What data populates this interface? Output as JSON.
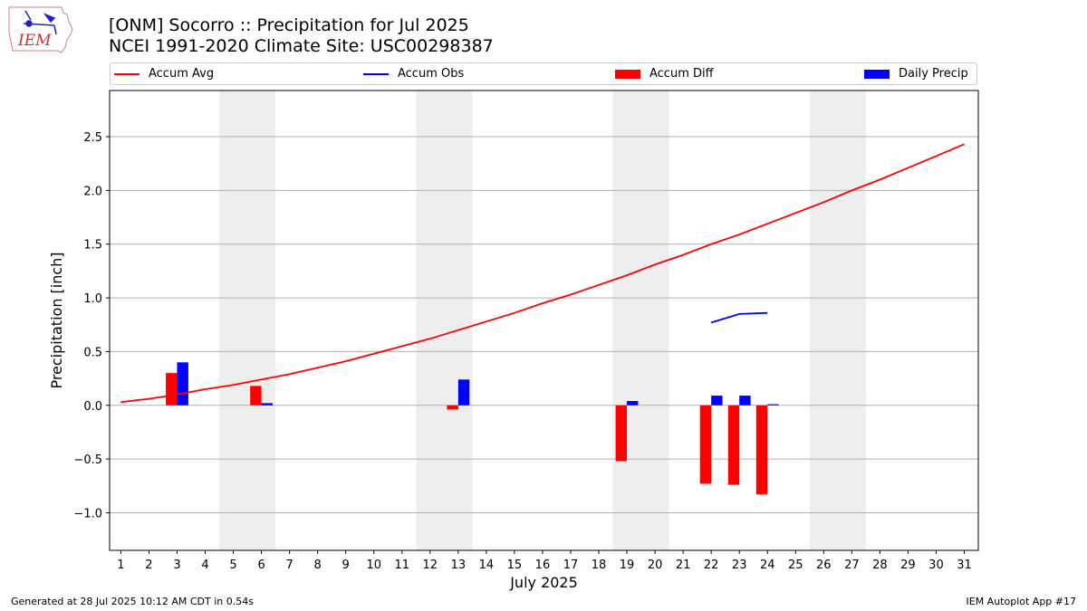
{
  "title_line1": "[ONM] Socorro :: Precipitation for Jul 2025",
  "title_line2": "NCEI 1991-2020 Climate Site: USC00298387",
  "logo_text": "IEM",
  "legend": {
    "accum_avg": "Accum Avg",
    "accum_obs": "Accum Obs",
    "accum_diff": "Accum Diff",
    "daily_precip": "Daily Precip"
  },
  "footer_left": "Generated at 28 Jul 2025 10:12 AM CDT in 0.54s",
  "footer_right": "IEM Autoplot App #17",
  "colors": {
    "avg": "#ff0000",
    "obs": "#0000ff",
    "diff": "#ff0000",
    "daily": "#0000ff",
    "weekend": "#eeeeee",
    "grid": "#b0b0b0"
  },
  "chart_data": {
    "type": "bar",
    "xlabel": "July 2025",
    "ylabel": "Precipitation [inch]",
    "ylim": [
      -1.35,
      2.93
    ],
    "yticks": [
      -1.0,
      -0.5,
      0.0,
      0.5,
      1.0,
      1.5,
      2.0,
      2.5
    ],
    "ytick_labels": [
      "−1.0",
      "−0.5",
      "0.0",
      "0.5",
      "1.0",
      "1.5",
      "2.0",
      "2.5"
    ],
    "xlim": [
      0.6,
      31.5
    ],
    "days": [
      1,
      2,
      3,
      4,
      5,
      6,
      7,
      8,
      9,
      10,
      11,
      12,
      13,
      14,
      15,
      16,
      17,
      18,
      19,
      20,
      21,
      22,
      23,
      24,
      25,
      26,
      27,
      28,
      29,
      30,
      31
    ],
    "grid": "y",
    "legend_position": "top",
    "weekend_spans": [
      [
        4.5,
        6.5
      ],
      [
        11.5,
        13.5
      ],
      [
        18.5,
        20.5
      ],
      [
        25.5,
        27.5
      ]
    ],
    "accum_avg": [
      0.03,
      0.06,
      0.1,
      0.15,
      0.19,
      0.24,
      0.29,
      0.35,
      0.41,
      0.48,
      0.55,
      0.62,
      0.7,
      0.78,
      0.86,
      0.95,
      1.03,
      1.12,
      1.21,
      1.31,
      1.4,
      1.5,
      1.59,
      1.69,
      1.79,
      1.89,
      2.0,
      2.1,
      2.21,
      2.32,
      2.43
    ],
    "accum_obs": [
      [
        22,
        0.77
      ],
      [
        23,
        0.85
      ],
      [
        24,
        0.86
      ]
    ],
    "accum_diff": [
      [
        3,
        0.3
      ],
      [
        6,
        0.18
      ],
      [
        13,
        -0.04
      ],
      [
        19,
        -0.52
      ],
      [
        22,
        -0.73
      ],
      [
        23,
        -0.74
      ],
      [
        24,
        -0.83
      ]
    ],
    "daily_precip": [
      [
        3,
        0.4
      ],
      [
        6,
        0.02
      ],
      [
        13,
        0.24
      ],
      [
        19,
        0.04
      ],
      [
        22,
        0.09
      ],
      [
        23,
        0.09
      ],
      [
        24,
        0.01
      ]
    ]
  }
}
